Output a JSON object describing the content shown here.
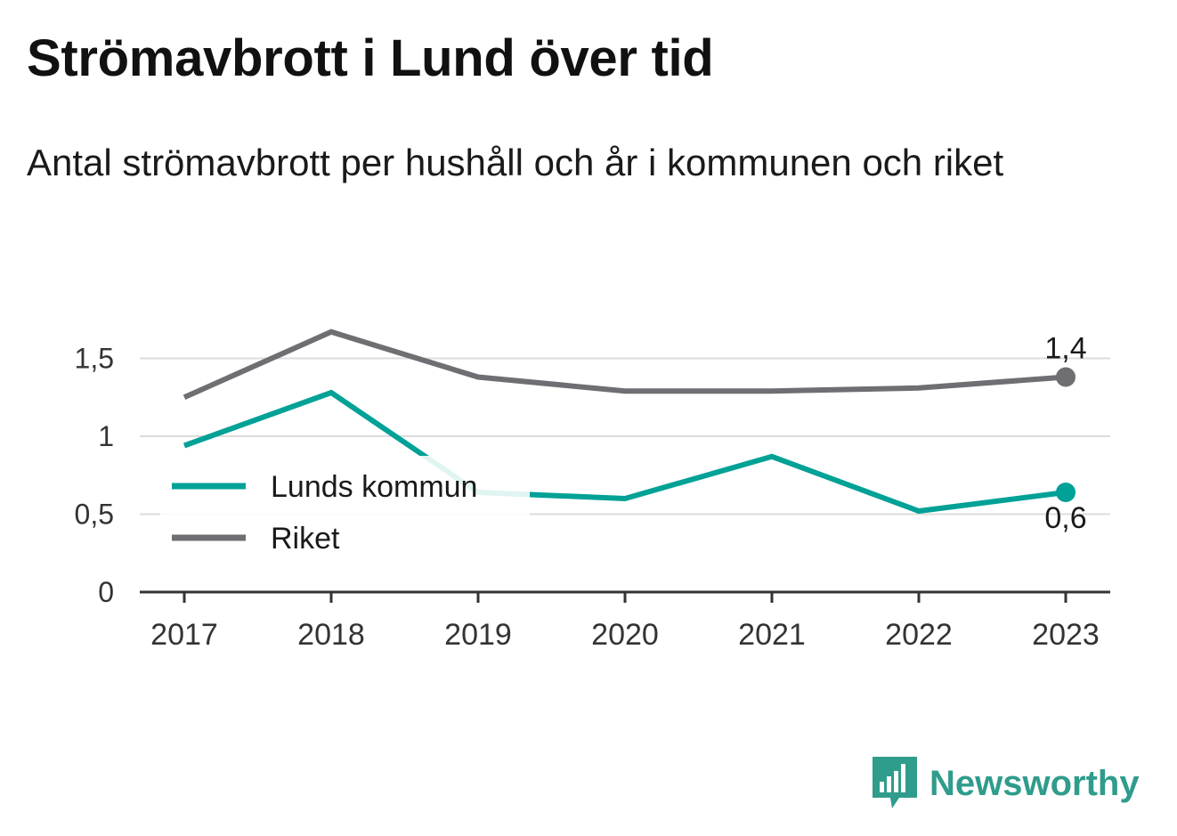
{
  "title": "Strömavbrott i Lund över tid",
  "subtitle": "Antal strömavbrott per hushåll och år i kommunen och riket",
  "brand": {
    "name": "Newsworthy",
    "icon": "bar-chart-speech-bubble-icon",
    "color": "#2f9c8c"
  },
  "chart_data": {
    "type": "line",
    "x": [
      "2017",
      "2018",
      "2019",
      "2020",
      "2021",
      "2022",
      "2023"
    ],
    "series": [
      {
        "name": "Lunds kommun",
        "color": "#00a196",
        "values": [
          0.94,
          1.28,
          0.64,
          0.6,
          0.87,
          0.52,
          0.64
        ]
      },
      {
        "name": "Riket",
        "color": "#6e6e73",
        "values": [
          1.25,
          1.67,
          1.38,
          1.29,
          1.29,
          1.31,
          1.38
        ]
      }
    ],
    "yticks": [
      {
        "value": 0,
        "label": "0"
      },
      {
        "value": 0.5,
        "label": "0,5"
      },
      {
        "value": 1,
        "label": "1"
      },
      {
        "value": 1.5,
        "label": "1,5"
      }
    ],
    "ylim": [
      0,
      1.72
    ],
    "end_labels": {
      "Lunds kommun": "0,6",
      "Riket": "1,4"
    },
    "legend_position": "center-left",
    "grid": true
  }
}
